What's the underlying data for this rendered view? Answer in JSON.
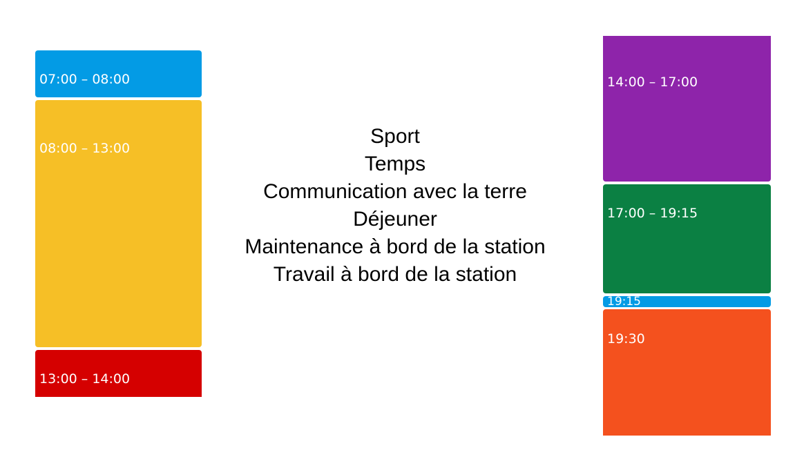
{
  "left_column": [
    {
      "label": "07:00 – 08:00",
      "color": "#039be5"
    },
    {
      "label": "08:00 – 13:00",
      "color": "#f6bf26"
    },
    {
      "label": "13:00 – 14:00",
      "color": "#d50000"
    }
  ],
  "right_column": [
    {
      "label": "14:00 – 17:00",
      "color": "#8e24aa"
    },
    {
      "label": "17:00 – 19:15",
      "color": "#0b8043"
    },
    {
      "label": "19:15",
      "color": "#039be5"
    },
    {
      "label": "19:30",
      "color": "#f4511e"
    }
  ],
  "activities": [
    "Sport",
    "Temps",
    "Communication avec la terre",
    "Déjeuner",
    "Maintenance à bord de la station",
    "Travail à bord de la station"
  ]
}
